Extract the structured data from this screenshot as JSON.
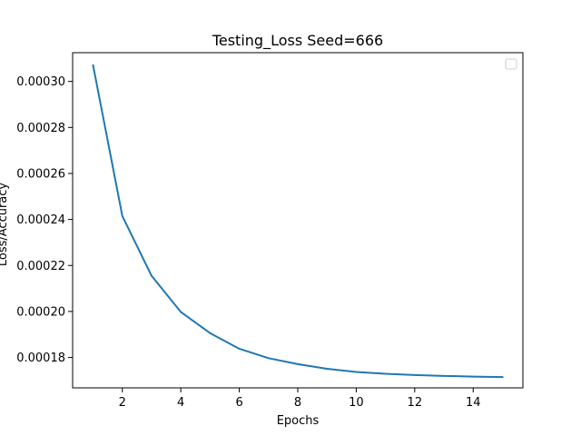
{
  "chart_data": {
    "type": "line",
    "title": "Testing_Loss Seed=666",
    "xlabel": "Epochs",
    "ylabel": "Loss/Accuracy",
    "xlim": [
      0.3,
      15.7
    ],
    "ylim": [
      0.0001668,
      0.0003125
    ],
    "x_ticks": [
      2,
      4,
      6,
      8,
      10,
      12,
      14
    ],
    "y_ticks": [
      0.00018,
      0.0002,
      0.00022,
      0.00024,
      0.00026,
      0.00028,
      0.0003
    ],
    "y_tick_labels": [
      "0.00018",
      "0.00020",
      "0.00022",
      "0.00024",
      "0.00026",
      "0.00028",
      "0.00030"
    ],
    "grid": false,
    "legend": "top-right",
    "series": [
      {
        "color": "#1f77b4",
        "x": [
          1,
          2,
          3,
          4,
          5,
          6,
          7,
          8,
          9,
          10,
          11,
          12,
          13,
          14,
          15
        ],
        "y": [
          0.000307,
          0.0002415,
          0.0002155,
          0.0001998,
          0.0001906,
          0.0001838,
          0.0001797,
          0.0001771,
          0.0001751,
          0.0001737,
          0.0001729,
          0.0001724,
          0.000172,
          0.0001717,
          0.0001715
        ]
      }
    ]
  }
}
